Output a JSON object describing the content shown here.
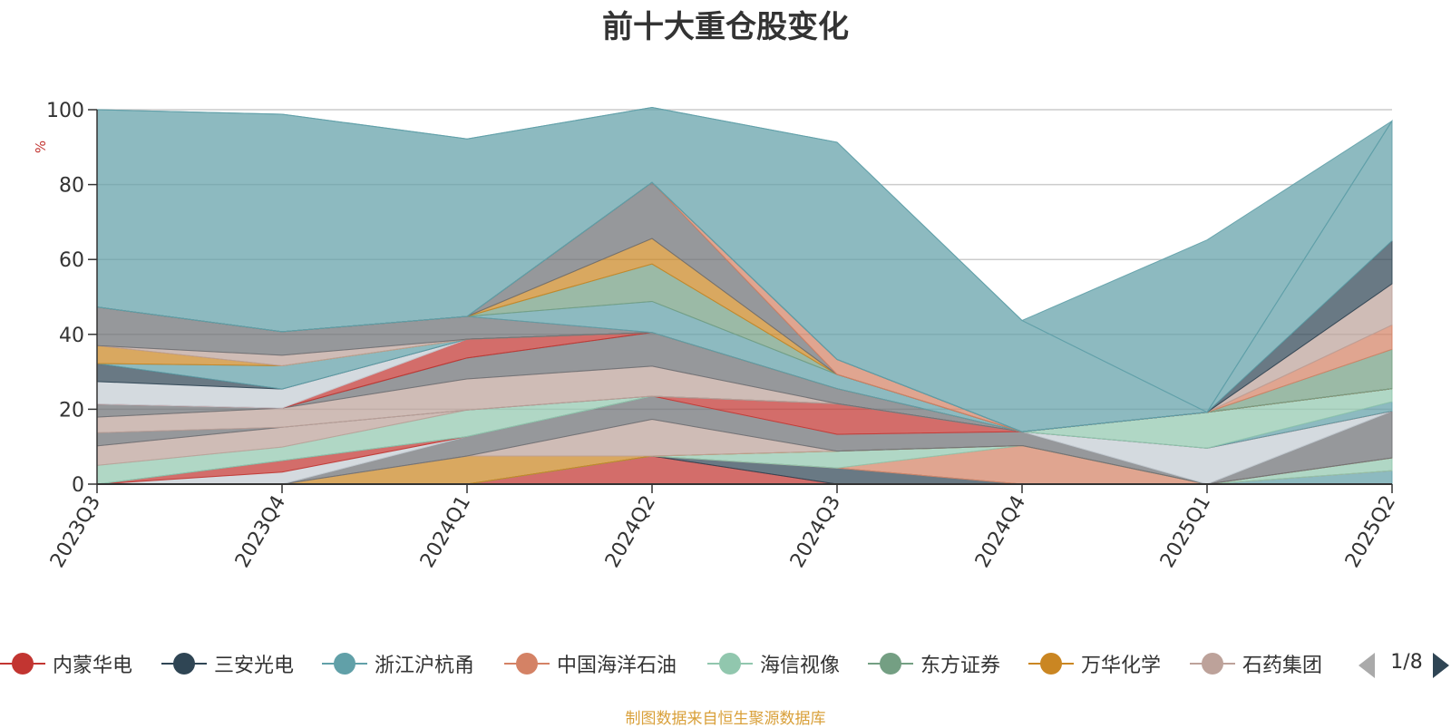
{
  "colors": [
    "#c23531",
    "#2f4554",
    "#61a0a8",
    "#d48265",
    "#91c7ae",
    "#749f83",
    "#ca8622",
    "#bda29a",
    "#6e7074",
    "#c4ccd3"
  ],
  "chart_data": {
    "type": "area",
    "title": "前十大重仓股变化",
    "ylabel": "%",
    "ylim": [
      0,
      100
    ],
    "yticks": [
      "0",
      "20",
      "40",
      "60",
      "80",
      "100"
    ],
    "categories": [
      "2023Q3",
      "2023Q4",
      "2024Q1",
      "2024Q2",
      "2024Q3",
      "2024Q4",
      "2025Q1",
      "2025Q2"
    ],
    "stacked": true,
    "grid": true,
    "legend_position": "bottom",
    "series": [
      {
        "name": "内蒙华电",
        "color_index": 0,
        "values": [
          0,
          0,
          0,
          7.5,
          0,
          0,
          0,
          0
        ]
      },
      {
        "name": "三安光电",
        "color_index": 1,
        "values": [
          0,
          0,
          0,
          0,
          4.3,
          0,
          0,
          0
        ]
      },
      {
        "name": "浙江沪杭甬",
        "color_index": 2,
        "values": [
          0,
          0,
          0,
          0,
          0,
          0,
          0,
          3.6
        ]
      },
      {
        "name": "中国海洋石油",
        "color_index": 3,
        "values": [
          0,
          0,
          0,
          0,
          0,
          10.3,
          0,
          0
        ]
      },
      {
        "name": "海信视像",
        "color_index": 4,
        "values": [
          0,
          0,
          0,
          0,
          4.5,
          0,
          0,
          3.4
        ]
      },
      {
        "name": "东方证券",
        "color_index": 5,
        "values": [
          0,
          0,
          0,
          0,
          0,
          0,
          0,
          0
        ]
      },
      {
        "name": "万华化学",
        "color_index": 6,
        "values": [
          0,
          0,
          7.5,
          0,
          0,
          0,
          0,
          0
        ]
      },
      {
        "name": "石药集团",
        "color_index": 7,
        "values": [
          0,
          0,
          0,
          9.8,
          0,
          0,
          0,
          0
        ]
      },
      {
        "name": "",
        "color_index": 8,
        "values": [
          0,
          0,
          5.2,
          6.2,
          4.5,
          3.7,
          0,
          12.5
        ]
      },
      {
        "name": "",
        "color_index": 9,
        "values": [
          0,
          3.2,
          0,
          0,
          0,
          0,
          9.6,
          0
        ]
      },
      {
        "name": "",
        "color_index": 0,
        "values": [
          0,
          3.1,
          0,
          0,
          8.2,
          0,
          0,
          0
        ]
      },
      {
        "name": "",
        "color_index": 2,
        "values": [
          0,
          0,
          0,
          0,
          0,
          0,
          0,
          2.5
        ]
      },
      {
        "name": "",
        "color_index": 4,
        "values": [
          5.0,
          3.6,
          7.1,
          0,
          0,
          0,
          9.6,
          3.5
        ]
      },
      {
        "name": "",
        "color_index": 7,
        "values": [
          5.2,
          5.3,
          0,
          0,
          0,
          0,
          0,
          0
        ]
      },
      {
        "name": "",
        "color_index": 8,
        "values": [
          3.5,
          0,
          0,
          0,
          0,
          0,
          0,
          0
        ]
      },
      {
        "name": "",
        "color_index": 7,
        "values": [
          4.2,
          5.1,
          8.3,
          8.0,
          0,
          0,
          0,
          0
        ]
      },
      {
        "name": "",
        "color_index": 8,
        "values": [
          3.5,
          0,
          5.6,
          9.0,
          4.0,
          0,
          0,
          0
        ]
      },
      {
        "name": "",
        "color_index": 0,
        "values": [
          0,
          0,
          5.0,
          0,
          0,
          0,
          0,
          0
        ]
      },
      {
        "name": "",
        "color_index": 9,
        "values": [
          6.0,
          5.1,
          0,
          0,
          0,
          0,
          0,
          0
        ]
      },
      {
        "name": "",
        "color_index": 1,
        "values": [
          4.8,
          0,
          0,
          0,
          0,
          0,
          0,
          0
        ]
      },
      {
        "name": "",
        "color_index": 2,
        "values": [
          0,
          6.2,
          0,
          0,
          0,
          0,
          0,
          0
        ]
      },
      {
        "name": "",
        "color_index": 6,
        "values": [
          4.8,
          0,
          0,
          0,
          0,
          0,
          0,
          0
        ]
      },
      {
        "name": "",
        "color_index": 7,
        "values": [
          0,
          2.8,
          0,
          0,
          0,
          0,
          0,
          0
        ]
      },
      {
        "name": "",
        "color_index": 8,
        "values": [
          10.3,
          6.3,
          6.1,
          0,
          0,
          0,
          0,
          0
        ]
      },
      {
        "name": "",
        "color_index": 2,
        "values": [
          0,
          0,
          0,
          8.3,
          3.8,
          0,
          0,
          0
        ]
      },
      {
        "name": "",
        "color_index": 5,
        "values": [
          0,
          0,
          0,
          10.0,
          0,
          0,
          0,
          0
        ]
      },
      {
        "name": "",
        "color_index": 6,
        "values": [
          0,
          0,
          0,
          6.8,
          0,
          0,
          0,
          0
        ]
      },
      {
        "name": "",
        "color_index": 8,
        "values": [
          0,
          0,
          0,
          15.0,
          0,
          0,
          0,
          0
        ]
      },
      {
        "name": "",
        "color_index": 3,
        "values": [
          0,
          0,
          0,
          0,
          4.0,
          0,
          0,
          0
        ]
      },
      {
        "name": "",
        "color_index": 5,
        "values": [
          0,
          0,
          0,
          0,
          0,
          0,
          0,
          10.5
        ]
      },
      {
        "name": "",
        "color_index": 3,
        "values": [
          0,
          0,
          0,
          0,
          0,
          0,
          0,
          6.5
        ]
      },
      {
        "name": "",
        "color_index": 7,
        "values": [
          0,
          0,
          0,
          0,
          0,
          0,
          0,
          11.0
        ]
      },
      {
        "name": "",
        "color_index": 1,
        "values": [
          0,
          0,
          0,
          0,
          0,
          0,
          0,
          11.5
        ]
      },
      {
        "name": "",
        "color_index": 2,
        "values": [
          0,
          0,
          0,
          0,
          0,
          0,
          0,
          32.0
        ]
      },
      {
        "name": "",
        "color_index": 2,
        "values": [
          52.7,
          58.1,
          47.4,
          20.0,
          58.0,
          29.7,
          0,
          0
        ]
      },
      {
        "name": "",
        "color_index": 2,
        "values": [
          0,
          0,
          0,
          0,
          0,
          0,
          46.0,
          0
        ]
      }
    ]
  },
  "legend": {
    "items": [
      {
        "label": "内蒙华电",
        "color_index": 0
      },
      {
        "label": "三安光电",
        "color_index": 1
      },
      {
        "label": "浙江沪杭甬",
        "color_index": 2
      },
      {
        "label": "中国海洋石油",
        "color_index": 3
      },
      {
        "label": "海信视像",
        "color_index": 4
      },
      {
        "label": "东方证券",
        "color_index": 5
      },
      {
        "label": "万华化学",
        "color_index": 6
      },
      {
        "label": "石药集团",
        "color_index": 7
      }
    ],
    "page_text": "1/8"
  },
  "source_note": "制图数据来自恒生聚源数据库"
}
